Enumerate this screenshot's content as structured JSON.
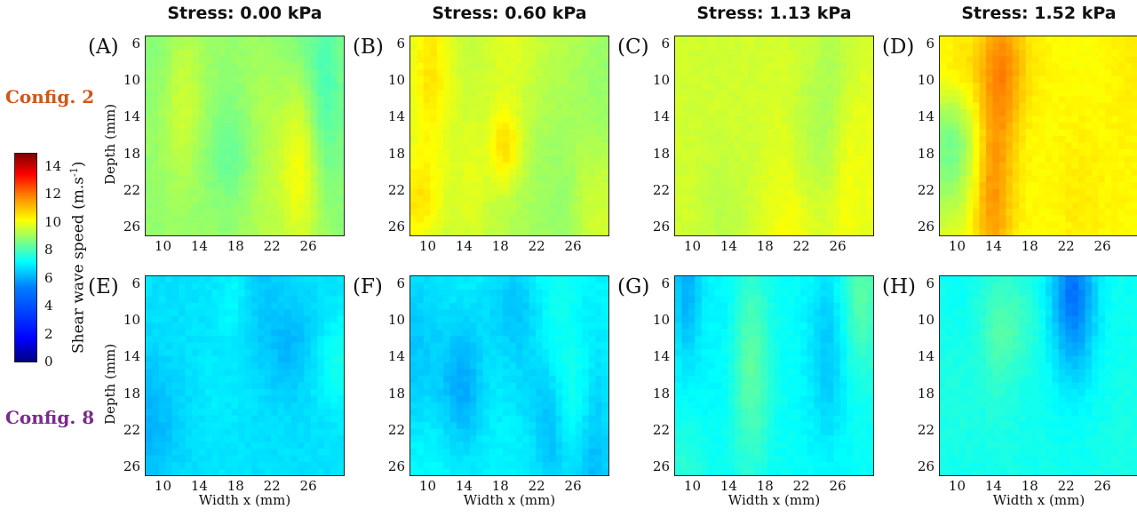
{
  "column_titles": [
    "Stress: 0.00 kPa",
    "Stress: 0.60 kPa",
    "Stress: 1.13 kPa",
    "Stress: 1.52 kPa"
  ],
  "row_labels": [
    {
      "text": "Config. 2",
      "color": "#d1561a"
    },
    {
      "text": "Config. 8",
      "color": "#7a2a8e"
    }
  ],
  "panel_letters": [
    "(A)",
    "(B)",
    "(C)",
    "(D)",
    "(E)",
    "(F)",
    "(G)",
    "(H)"
  ],
  "y_label": "Depth  (mm)",
  "x_label": "Width x (mm)",
  "colorbar": {
    "title": "Shear wave speed (m.s",
    "title_sup": "-1",
    "title_end": ")",
    "ticks": [
      "0",
      "2",
      "4",
      "6",
      "8",
      "10",
      "12",
      "14"
    ],
    "range": [
      0,
      15
    ],
    "colormap": "jet"
  },
  "chart_data": {
    "type": "heatmap",
    "layout": "2 rows x 4 columns",
    "x_axis": {
      "label": "Width x (mm)",
      "ticks": [
        10,
        14,
        18,
        22,
        26
      ],
      "range": [
        8,
        30
      ]
    },
    "y_axis": {
      "label": "Depth  (mm)",
      "ticks": [
        6,
        10,
        14,
        18,
        22,
        26
      ],
      "range": [
        5,
        27
      ],
      "reversed": true
    },
    "color_axis": {
      "label": "Shear wave speed (m.s-1)",
      "range": [
        0,
        15
      ],
      "colormap": "jet"
    },
    "panels": [
      {
        "label": "(A)",
        "config": "Config. 2",
        "stress_kPa": 0.0,
        "mean_speed": 7.8,
        "variation": 0.9,
        "seed": 11
      },
      {
        "label": "(B)",
        "config": "Config. 2",
        "stress_kPa": 0.6,
        "mean_speed": 8.3,
        "variation": 1.1,
        "seed": 23
      },
      {
        "label": "(C)",
        "config": "Config. 2",
        "stress_kPa": 1.13,
        "mean_speed": 8.7,
        "variation": 1.1,
        "seed": 37
      },
      {
        "label": "(D)",
        "config": "Config. 2",
        "stress_kPa": 1.52,
        "mean_speed": 9.4,
        "variation": 1.2,
        "seed": 41
      },
      {
        "label": "(E)",
        "config": "Config. 8",
        "stress_kPa": 0.0,
        "mean_speed": 5.2,
        "variation": 0.7,
        "seed": 53
      },
      {
        "label": "(F)",
        "config": "Config. 8",
        "stress_kPa": 0.6,
        "mean_speed": 5.5,
        "variation": 0.7,
        "seed": 67
      },
      {
        "label": "(G)",
        "config": "Config. 8",
        "stress_kPa": 1.13,
        "mean_speed": 5.7,
        "variation": 0.8,
        "seed": 71
      },
      {
        "label": "(H)",
        "config": "Config. 8",
        "stress_kPa": 1.52,
        "mean_speed": 5.9,
        "variation": 0.8,
        "seed": 83
      }
    ]
  }
}
